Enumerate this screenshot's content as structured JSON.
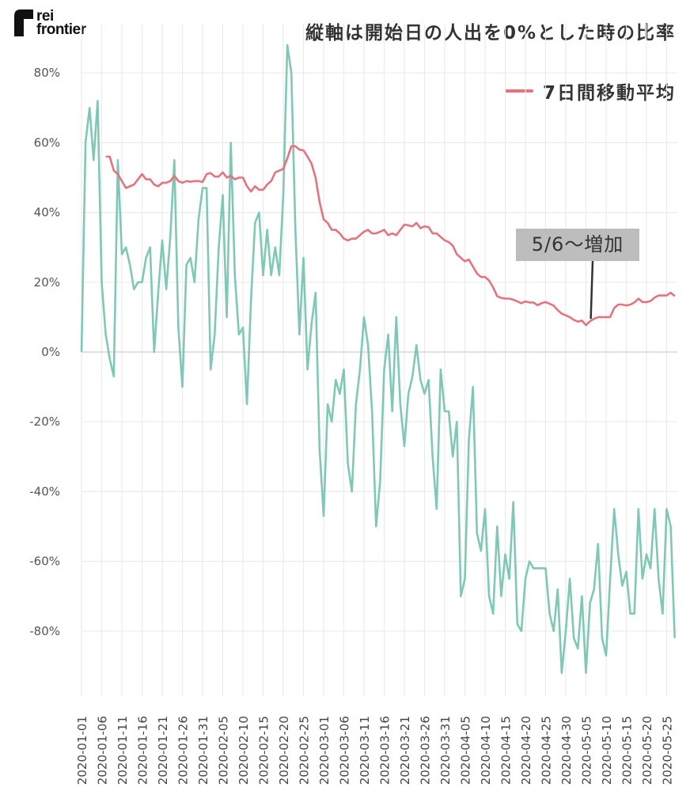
{
  "logo": {
    "text_line1": "rei",
    "text_line2": "frontier"
  },
  "chart_data": {
    "type": "line",
    "title": "縦軸は開始日の人出を0%とした時の比率",
    "x_range": [
      "2020-01-01",
      "2020-05-27"
    ],
    "x_frequency": "daily",
    "x_ticks": [
      "2020-01-01",
      "2020-01-06",
      "2020-01-11",
      "2020-01-16",
      "2020-01-21",
      "2020-01-26",
      "2020-01-31",
      "2020-02-05",
      "2020-02-10",
      "2020-02-15",
      "2020-02-20",
      "2020-02-25",
      "2020-03-01",
      "2020-03-06",
      "2020-03-11",
      "2020-03-16",
      "2020-03-21",
      "2020-03-26",
      "2020-03-31",
      "2020-04-05",
      "2020-04-10",
      "2020-04-15",
      "2020-04-20",
      "2020-04-25",
      "2020-04-30",
      "2020-05-05",
      "2020-05-10",
      "2020-05-15",
      "2020-05-20",
      "2020-05-25"
    ],
    "y_ticks": [
      80,
      60,
      40,
      20,
      0,
      -20,
      -40,
      -60,
      -80
    ],
    "y_tick_format": "%",
    "ylim": [
      -100,
      90
    ],
    "grid": true,
    "legend_position": "top-right",
    "series": [
      {
        "color": "#7fc8b8",
        "values": [
          0,
          60,
          70,
          55,
          72,
          20,
          5,
          -2,
          -7,
          55,
          28,
          30,
          25,
          18,
          20,
          20,
          27,
          30,
          0,
          17,
          32,
          18,
          33,
          55,
          7,
          -10,
          25,
          27,
          20,
          38,
          47,
          47,
          -5,
          5,
          30,
          45,
          10,
          60,
          22,
          5,
          7,
          -15,
          15,
          37,
          40,
          22,
          35,
          22,
          30,
          22,
          45,
          88,
          80,
          35,
          5,
          27,
          -5,
          8,
          17,
          -28,
          -47,
          -15,
          -20,
          -8,
          -12,
          -5,
          -32,
          -40,
          -15,
          -5,
          10,
          2,
          -17,
          -50,
          -37,
          -5,
          5,
          -17,
          10,
          -15,
          -27,
          -12,
          -7,
          2,
          -8,
          -12,
          -8,
          -30,
          -45,
          -5,
          -17,
          -17,
          -30,
          -20,
          -70,
          -65,
          -25,
          -10,
          -52,
          -57,
          -45,
          -70,
          -75,
          -50,
          -70,
          -58,
          -65,
          -43,
          -78,
          -80,
          -65,
          -60,
          -62,
          -62,
          -62,
          -62,
          -75,
          -80,
          -68,
          -92,
          -80,
          -65,
          -82,
          -85,
          -70,
          -92,
          -72,
          -68,
          -55,
          -82,
          -87,
          -65,
          -45,
          -58,
          -67,
          -63,
          -75,
          -75,
          -45,
          -65,
          -58,
          -62,
          -45,
          -65,
          -75,
          -45,
          -50,
          -82
        ]
      },
      {
        "name": "7日間移動平均",
        "color": "#e5737d",
        "values": [
          null,
          null,
          null,
          null,
          null,
          null,
          56,
          56,
          52,
          51,
          49,
          47,
          47.5,
          48,
          49.5,
          51,
          49.5,
          49.5,
          48,
          47.5,
          48.5,
          48.5,
          49,
          50.5,
          49,
          48.5,
          49,
          48.8,
          49,
          49,
          48.7,
          51,
          51.3,
          50.3,
          50.3,
          51.5,
          50,
          50.5,
          49.5,
          50,
          50,
          47.5,
          46,
          47.5,
          46.5,
          46.5,
          48,
          49,
          51.5,
          52,
          52.5,
          55.5,
          59,
          59,
          58,
          57.8,
          56,
          54,
          50,
          43,
          38,
          37,
          35,
          35,
          34,
          32.5,
          32,
          32.5,
          32.5,
          33.5,
          34.5,
          35,
          34,
          34,
          34.5,
          35,
          33.5,
          34,
          33.5,
          35,
          36.5,
          36.3,
          36,
          37,
          35.5,
          36,
          35.8,
          34,
          34,
          33,
          32,
          31.5,
          30.5,
          28,
          27,
          26,
          26.5,
          24.5,
          22.5,
          21.5,
          21.5,
          20.5,
          18.5,
          16,
          15.5,
          15.3,
          15.3,
          15,
          14.5,
          14,
          14.5,
          14.2,
          14.2,
          13.4,
          14,
          14.3,
          13.8,
          13.3,
          12,
          11,
          10.5,
          10,
          9.2,
          8.7,
          9,
          7.7,
          8.8,
          9.5,
          10,
          10,
          10,
          10,
          12.6,
          13.6,
          13.6,
          13.3,
          13.6,
          14.2,
          15.3,
          14.3,
          14.3,
          14.6,
          15.6,
          16.2,
          16.2,
          16.2,
          17,
          16
        ]
      }
    ],
    "annotations": [
      {
        "text": "5/6〜増加",
        "x": "2020-05-06"
      }
    ]
  }
}
